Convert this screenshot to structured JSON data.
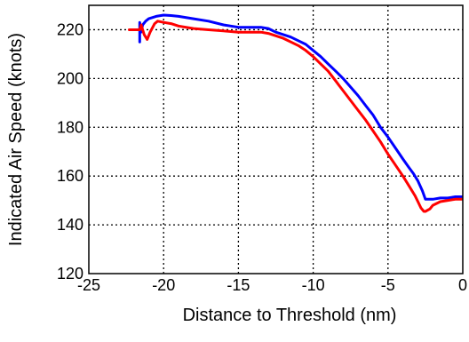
{
  "chart_data": {
    "type": "line",
    "title": "",
    "xlabel": "Distance to Threshold (nm)",
    "ylabel": "Indicated Air Speed (knots)",
    "xlim": [
      -25,
      0
    ],
    "ylim": [
      120,
      230
    ],
    "xticks": [
      -25,
      -20,
      -15,
      -10,
      -5,
      0
    ],
    "xtick_labels": [
      "-25",
      "-20",
      "-15",
      "-10",
      "-5",
      "0"
    ],
    "yticks": [
      120,
      140,
      160,
      180,
      200,
      220
    ],
    "ytick_labels": [
      "120",
      "140",
      "160",
      "180",
      "200",
      "220"
    ],
    "grid": true,
    "grid_style": "dotted",
    "legend": false,
    "series": [
      {
        "color": "#0000ff",
        "x": [
          -21.6,
          -21.6,
          -21.5,
          -21.4,
          -21.2,
          -21.0,
          -20.5,
          -20.0,
          -19.5,
          -19.0,
          -18.0,
          -17.0,
          -16.0,
          -15.0,
          -14.0,
          -13.5,
          -13.0,
          -12.5,
          -12.0,
          -11.5,
          -11.0,
          -10.5,
          -10.0,
          -9.5,
          -9.0,
          -8.5,
          -8.0,
          -7.5,
          -7.0,
          -6.5,
          -6.0,
          -5.5,
          -5.0,
          -4.5,
          -4.0,
          -3.6,
          -3.3,
          -3.0,
          -2.7,
          -2.5,
          -2.3,
          -2.0,
          -1.5,
          -1.0,
          -0.5,
          0.0
        ],
        "y": [
          215,
          223,
          219,
          222,
          223.5,
          224.5,
          225.5,
          226,
          225.8,
          225.5,
          224.5,
          223.5,
          222,
          221,
          221,
          221,
          220.5,
          219,
          218,
          217,
          215.5,
          214,
          211.5,
          209,
          206,
          203,
          200,
          196.5,
          193,
          189,
          185,
          180,
          176,
          171.5,
          167,
          163.5,
          161,
          158,
          154,
          150.5,
          150.5,
          150.5,
          151,
          151,
          151.5,
          151.5
        ]
      },
      {
        "color": "#ff0000",
        "x": [
          -22.3,
          -21.6,
          -21.5,
          -21.3,
          -21.1,
          -20.9,
          -20.6,
          -20.4,
          -20.0,
          -19.5,
          -19.0,
          -18.0,
          -17.0,
          -16.0,
          -15.0,
          -14.0,
          -13.5,
          -13.0,
          -12.5,
          -12.0,
          -11.5,
          -11.0,
          -10.5,
          -10.0,
          -9.5,
          -9.0,
          -8.5,
          -8.0,
          -7.5,
          -7.0,
          -6.5,
          -6.0,
          -5.5,
          -5.0,
          -4.5,
          -4.0,
          -3.5,
          -3.2,
          -3.0,
          -2.8,
          -2.6,
          -2.5,
          -2.2,
          -2.0,
          -1.5,
          -1.0,
          -0.5,
          0.0
        ],
        "y": [
          220,
          220,
          222,
          218,
          216,
          219,
          222.5,
          223.5,
          223,
          222.5,
          221.5,
          220.5,
          220,
          219.5,
          219,
          219,
          219,
          218.5,
          217.5,
          216.5,
          215,
          213.5,
          211.5,
          209,
          206,
          203,
          199,
          195,
          191,
          187,
          183,
          178.5,
          174,
          169,
          164.5,
          160,
          155,
          152,
          149.5,
          147,
          145.5,
          145.5,
          146.5,
          148,
          149.5,
          150,
          150.5,
          150.5
        ]
      }
    ]
  }
}
